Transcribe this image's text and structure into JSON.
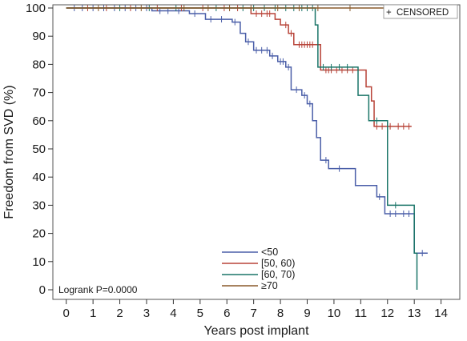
{
  "chart_data": {
    "type": "line",
    "subtype": "kaplan-meier step curves",
    "xlabel": "Years post implant",
    "ylabel": "Freedom from SVD (%)",
    "xlim": [
      -0.5,
      14.7
    ],
    "ylim": [
      0,
      100
    ],
    "xticks": [
      "0",
      "1",
      "2",
      "3",
      "4",
      "5",
      "6",
      "7",
      "8",
      "9",
      "10",
      "11",
      "12",
      "13",
      "14"
    ],
    "yticks": [
      "0",
      "10",
      "20",
      "30",
      "40",
      "50",
      "60",
      "70",
      "80",
      "90",
      "100"
    ],
    "grid": false,
    "annotation": "Logrank P=0.0000",
    "censored_legend": {
      "symbol": "+",
      "label": "CENSORED"
    },
    "legend_position": "bottom-center",
    "series": [
      {
        "name": "<50",
        "color": "#4a5ea8",
        "steps": [
          [
            0,
            100
          ],
          [
            3.2,
            99
          ],
          [
            4.6,
            98
          ],
          [
            5.2,
            96
          ],
          [
            6.2,
            95
          ],
          [
            6.5,
            91
          ],
          [
            6.7,
            88
          ],
          [
            7.0,
            85
          ],
          [
            7.6,
            83
          ],
          [
            7.9,
            81
          ],
          [
            8.2,
            79
          ],
          [
            8.4,
            71
          ],
          [
            8.8,
            69
          ],
          [
            9.0,
            66
          ],
          [
            9.2,
            60
          ],
          [
            9.35,
            54
          ],
          [
            9.5,
            46
          ],
          [
            9.8,
            43
          ],
          [
            10.8,
            37
          ],
          [
            11.6,
            33
          ],
          [
            11.9,
            27
          ],
          [
            13.0,
            13
          ],
          [
            13.5,
            13
          ]
        ],
        "censor_x": [
          0.3,
          0.6,
          1.0,
          1.4,
          1.8,
          2.2,
          2.6,
          3.0,
          3.5,
          3.8,
          4.2,
          4.8,
          5.4,
          5.8,
          6.3,
          6.8,
          7.1,
          7.3,
          7.5,
          7.7,
          8.0,
          8.1,
          8.3,
          8.6,
          8.9,
          9.1,
          9.7,
          10.2,
          11.7,
          12.1,
          12.3,
          12.6,
          12.8,
          13.3
        ]
      },
      {
        "name": "[50, 60)",
        "color": "#b84338",
        "steps": [
          [
            0,
            100
          ],
          [
            6.9,
            98
          ],
          [
            7.8,
            96
          ],
          [
            8.0,
            94
          ],
          [
            8.3,
            91
          ],
          [
            8.5,
            87
          ],
          [
            9.5,
            78
          ],
          [
            11.2,
            72
          ],
          [
            11.4,
            67
          ],
          [
            11.5,
            58
          ],
          [
            12.9,
            58
          ]
        ],
        "censor_x": [
          0.8,
          1.5,
          2.4,
          3.4,
          4.3,
          5.1,
          5.9,
          6.4,
          7.1,
          7.3,
          7.5,
          7.6,
          8.2,
          8.4,
          8.7,
          8.8,
          8.9,
          9.0,
          9.1,
          9.2,
          9.7,
          9.8,
          9.9,
          10.1,
          10.3,
          10.5,
          10.7,
          11.6,
          11.8,
          12.1,
          12.4,
          12.6,
          12.8
        ]
      },
      {
        "name": "[60, 70)",
        "color": "#1a7568",
        "steps": [
          [
            0,
            100
          ],
          [
            9.3,
            94
          ],
          [
            9.4,
            79
          ],
          [
            10.9,
            69
          ],
          [
            11.3,
            60
          ],
          [
            12.0,
            30
          ],
          [
            13.0,
            13
          ],
          [
            13.1,
            0
          ]
        ],
        "censor_x": [
          2.0,
          3.1,
          4.1,
          5.6,
          6.6,
          7.0,
          7.4,
          7.8,
          8.2,
          8.5,
          8.8,
          9.0,
          9.2,
          9.6,
          9.9,
          10.2,
          10.5,
          11.6,
          12.3
        ]
      },
      {
        "name": "≥70",
        "color": "#8a5a2b",
        "steps": [
          [
            0,
            100
          ],
          [
            14.6,
            100
          ]
        ],
        "censor_x": [
          1.2,
          2.8,
          4.4,
          5.3,
          6.1,
          6.9,
          7.9,
          8.7,
          9.4,
          10.6,
          11.9,
          13.4
        ]
      }
    ]
  }
}
